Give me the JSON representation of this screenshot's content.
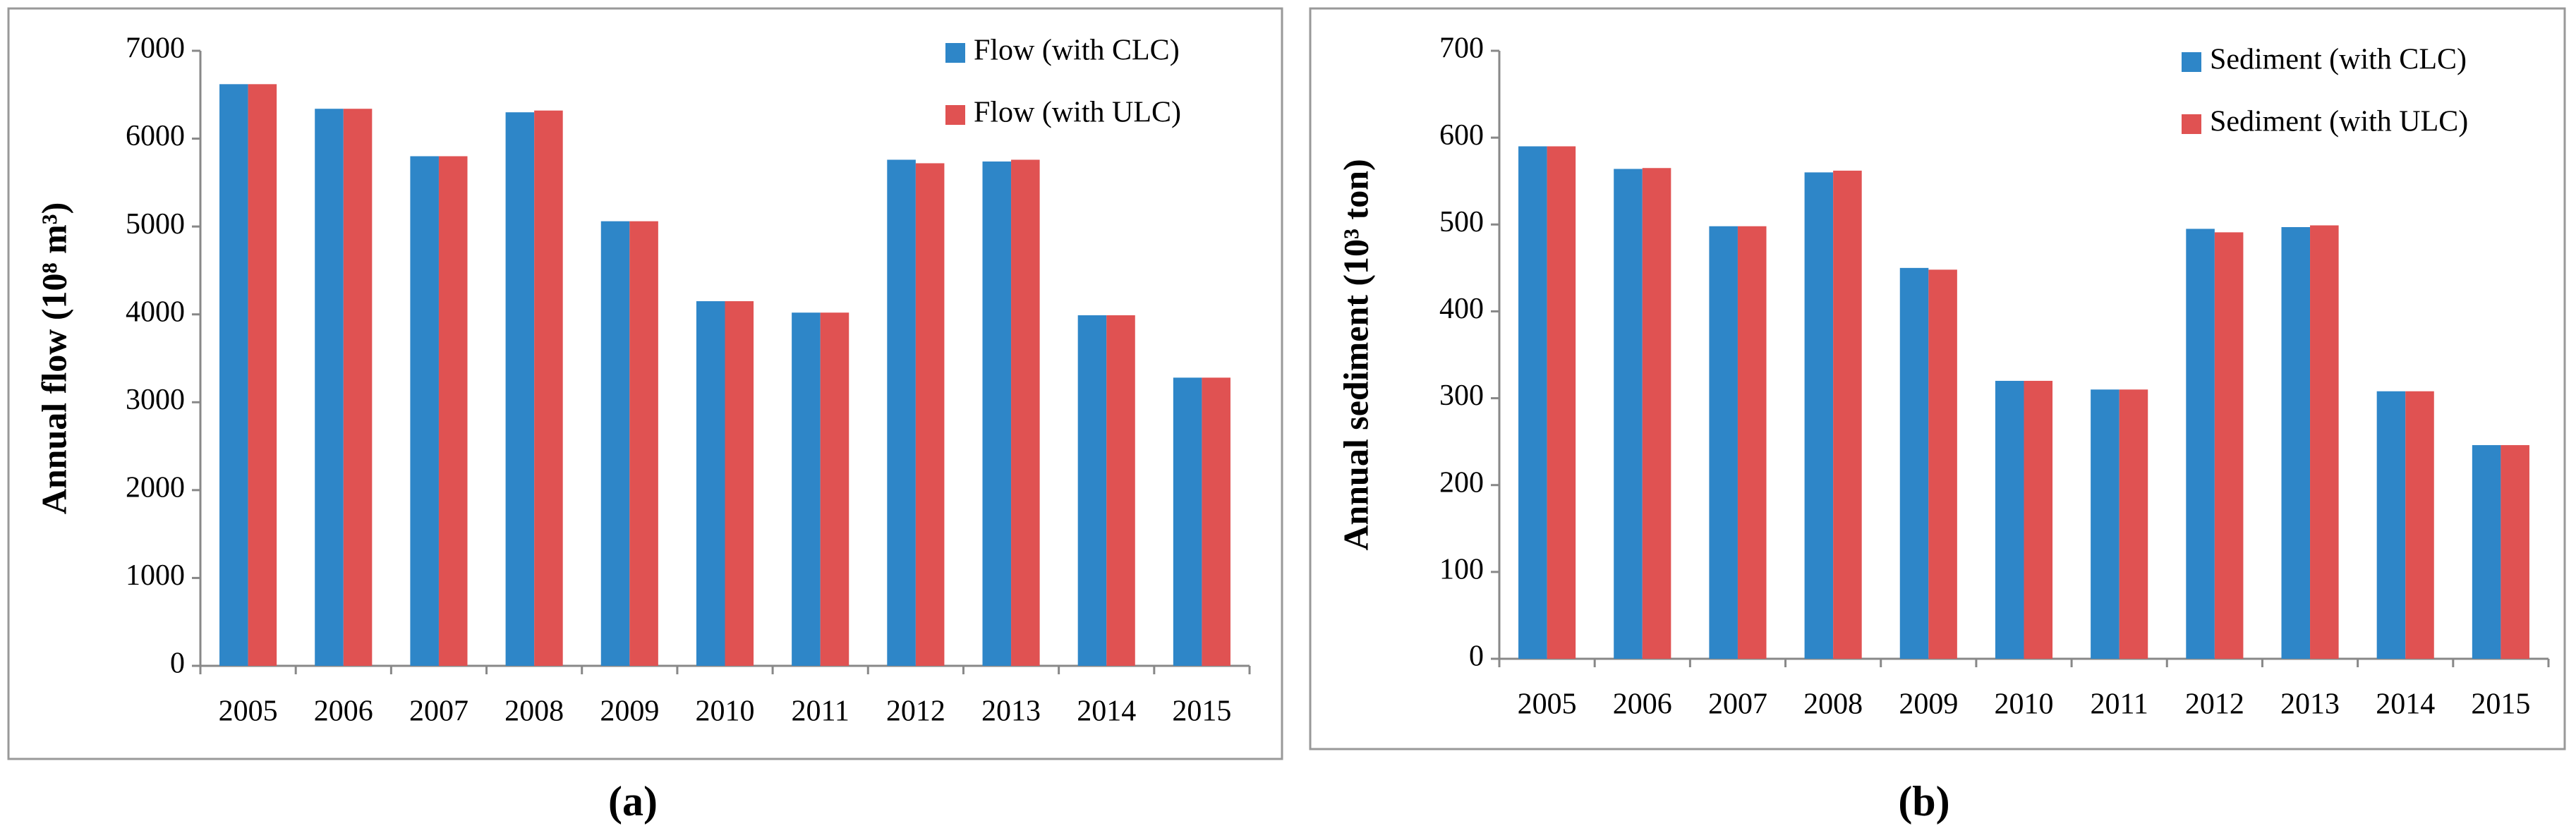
{
  "chart_data": [
    {
      "type": "bar",
      "caption": "(a)",
      "y_label": "Annual flow (10⁸ m³)",
      "categories": [
        "2005",
        "2006",
        "2007",
        "2008",
        "2009",
        "2010",
        "2011",
        "2012",
        "2013",
        "2014",
        "2015"
      ],
      "series": [
        {
          "name": "Flow (with CLC)",
          "color": "#2e86c8",
          "values": [
            6620,
            6340,
            5800,
            6300,
            5060,
            4150,
            4020,
            5760,
            5740,
            3990,
            3280
          ]
        },
        {
          "name": "Flow (with ULC)",
          "color": "#e05252",
          "values": [
            6620,
            6340,
            5800,
            6320,
            5060,
            4150,
            4020,
            5720,
            5760,
            3990,
            3280
          ]
        }
      ],
      "ylim": [
        0,
        7000
      ],
      "yticks": [
        0,
        1000,
        2000,
        3000,
        4000,
        5000,
        6000,
        7000
      ],
      "grid": false,
      "legend": "top-right"
    },
    {
      "type": "bar",
      "caption": "(b)",
      "y_label": "Annual sediment (10³ ton)",
      "categories": [
        "2005",
        "2006",
        "2007",
        "2008",
        "2009",
        "2010",
        "2011",
        "2012",
        "2013",
        "2014",
        "2015"
      ],
      "series": [
        {
          "name": "Sediment (with CLC)",
          "color": "#2e86c8",
          "values": [
            590,
            564,
            498,
            560,
            450,
            320,
            310,
            495,
            497,
            308,
            246
          ]
        },
        {
          "name": "Sediment (with ULC)",
          "color": "#e05252",
          "values": [
            590,
            565,
            498,
            562,
            448,
            320,
            310,
            491,
            499,
            308,
            246
          ]
        }
      ],
      "ylim": [
        0,
        700
      ],
      "yticks": [
        0,
        100,
        200,
        300,
        400,
        500,
        600,
        700
      ],
      "grid": false,
      "legend": "top-right"
    }
  ]
}
